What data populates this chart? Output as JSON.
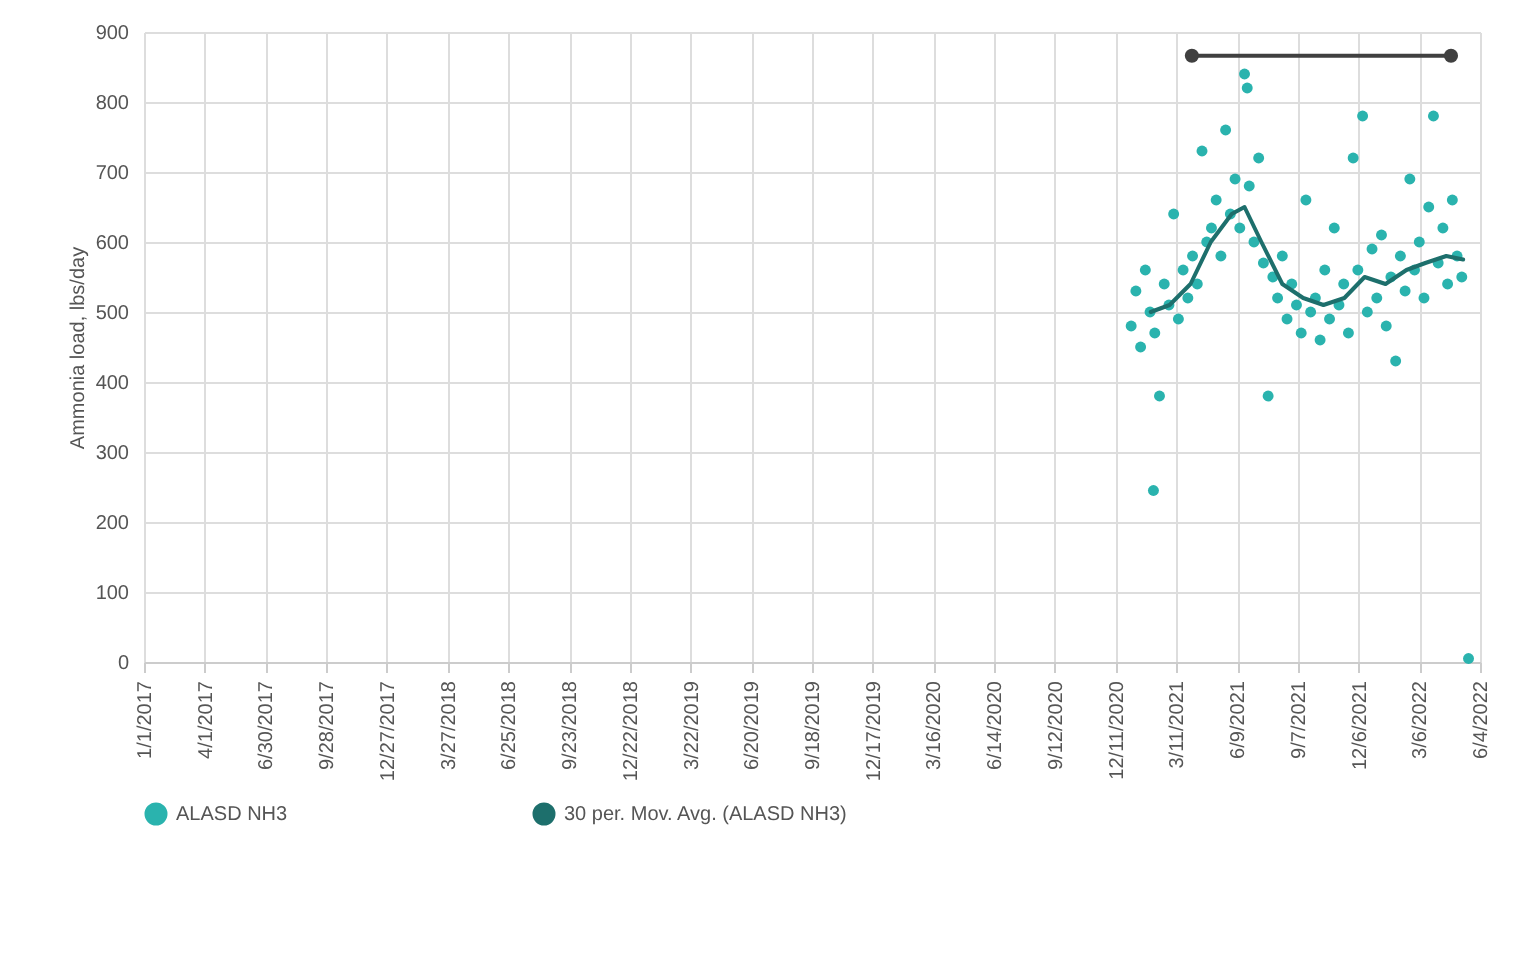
{
  "chart_data": {
    "type": "scatter",
    "ylabel": "Ammonia load, lbs/day",
    "xlim": [
      "2017-01-01",
      "2022-06-04"
    ],
    "xticks": [
      {
        "value": "2017-01-01",
        "label": "1/1/2017"
      },
      {
        "value": "2017-04-01",
        "label": "4/1/2017"
      },
      {
        "value": "2017-06-30",
        "label": "6/30/2017"
      },
      {
        "value": "2017-09-28",
        "label": "9/28/2017"
      },
      {
        "value": "2017-12-27",
        "label": "12/27/2017"
      },
      {
        "value": "2018-03-27",
        "label": "3/27/2018"
      },
      {
        "value": "2018-06-25",
        "label": "6/25/2018"
      },
      {
        "value": "2018-09-23",
        "label": "9/23/2018"
      },
      {
        "value": "2018-12-22",
        "label": "12/22/2018"
      },
      {
        "value": "2019-03-22",
        "label": "3/22/2019"
      },
      {
        "value": "2019-06-20",
        "label": "6/20/2019"
      },
      {
        "value": "2019-09-18",
        "label": "9/18/2019"
      },
      {
        "value": "2019-12-17",
        "label": "12/17/2019"
      },
      {
        "value": "2020-03-16",
        "label": "3/16/2020"
      },
      {
        "value": "2020-06-14",
        "label": "6/14/2020"
      },
      {
        "value": "2020-09-12",
        "label": "9/12/2020"
      },
      {
        "value": "2020-12-11",
        "label": "12/11/2020"
      },
      {
        "value": "2021-03-11",
        "label": "3/11/2021"
      },
      {
        "value": "2021-06-09",
        "label": "6/9/2021"
      },
      {
        "value": "2021-09-07",
        "label": "9/7/2021"
      },
      {
        "value": "2021-12-06",
        "label": "12/6/2021"
      },
      {
        "value": "2022-03-06",
        "label": "3/6/2022"
      },
      {
        "value": "2022-06-04",
        "label": "6/4/2022"
      }
    ],
    "ylim": [
      0,
      900
    ],
    "yticks": [
      0,
      100,
      200,
      300,
      400,
      500,
      600,
      700,
      800,
      900
    ],
    "grid": true,
    "legend": "bottom",
    "marker": "circle",
    "series": [
      {
        "name": "ALASD NH3",
        "color": "#2ab3ae",
        "x": [
          "2021-01-03",
          "2021-01-10",
          "2021-01-17",
          "2021-01-24",
          "2021-01-31",
          "2021-02-05",
          "2021-02-07",
          "2021-02-14",
          "2021-02-21",
          "2021-02-28",
          "2021-03-07",
          "2021-03-14",
          "2021-03-21",
          "2021-03-28",
          "2021-04-04",
          "2021-04-11",
          "2021-04-18",
          "2021-04-25",
          "2021-05-02",
          "2021-05-09",
          "2021-05-16",
          "2021-05-23",
          "2021-05-30",
          "2021-06-06",
          "2021-06-13",
          "2021-06-20",
          "2021-06-24",
          "2021-06-27",
          "2021-07-04",
          "2021-07-11",
          "2021-07-18",
          "2021-07-25",
          "2021-08-01",
          "2021-08-08",
          "2021-08-15",
          "2021-08-22",
          "2021-08-29",
          "2021-09-05",
          "2021-09-12",
          "2021-09-19",
          "2021-09-26",
          "2021-10-03",
          "2021-10-10",
          "2021-10-17",
          "2021-10-24",
          "2021-10-31",
          "2021-11-07",
          "2021-11-14",
          "2021-11-21",
          "2021-11-28",
          "2021-12-05",
          "2021-12-12",
          "2021-12-19",
          "2021-12-26",
          "2022-01-02",
          "2022-01-09",
          "2022-01-16",
          "2022-01-23",
          "2022-01-30",
          "2022-02-06",
          "2022-02-13",
          "2022-02-20",
          "2022-02-27",
          "2022-03-06",
          "2022-03-13",
          "2022-03-20",
          "2022-03-27",
          "2022-04-03",
          "2022-04-10",
          "2022-04-17",
          "2022-04-24",
          "2022-05-01",
          "2022-05-08",
          "2022-05-18"
        ],
        "values": [
          480,
          530,
          450,
          560,
          500,
          245,
          470,
          380,
          540,
          510,
          640,
          490,
          560,
          520,
          580,
          540,
          730,
          600,
          620,
          660,
          580,
          760,
          640,
          690,
          620,
          840,
          820,
          680,
          600,
          720,
          570,
          380,
          550,
          520,
          580,
          490,
          540,
          510,
          470,
          660,
          500,
          520,
          460,
          560,
          490,
          620,
          510,
          540,
          470,
          720,
          560,
          780,
          500,
          590,
          520,
          610,
          480,
          550,
          430,
          580,
          530,
          690,
          560,
          600,
          520,
          650,
          780,
          570,
          620,
          540,
          660,
          580,
          550,
          5
        ]
      },
      {
        "name": "30 per. Mov. Avg. (ALASD NH3)",
        "type": "line",
        "marker": "none",
        "color": "#1d6f6c",
        "x": [
          "2021-02-01",
          "2021-03-01",
          "2021-04-01",
          "2021-05-01",
          "2021-06-01",
          "2021-06-20",
          "2021-07-15",
          "2021-08-15",
          "2021-09-15",
          "2021-10-15",
          "2021-11-15",
          "2021-12-15",
          "2022-01-15",
          "2022-02-15",
          "2022-03-15",
          "2022-04-15",
          "2022-05-10"
        ],
        "values": [
          500,
          510,
          540,
          600,
          640,
          650,
          600,
          540,
          520,
          510,
          520,
          550,
          540,
          560,
          570,
          580,
          575
        ]
      },
      {
        "type": "line",
        "marker": "circle",
        "color": "#404040",
        "x": [
          "2021-04-03",
          "2022-04-22"
        ],
        "values": [
          866,
          866
        ]
      }
    ]
  }
}
